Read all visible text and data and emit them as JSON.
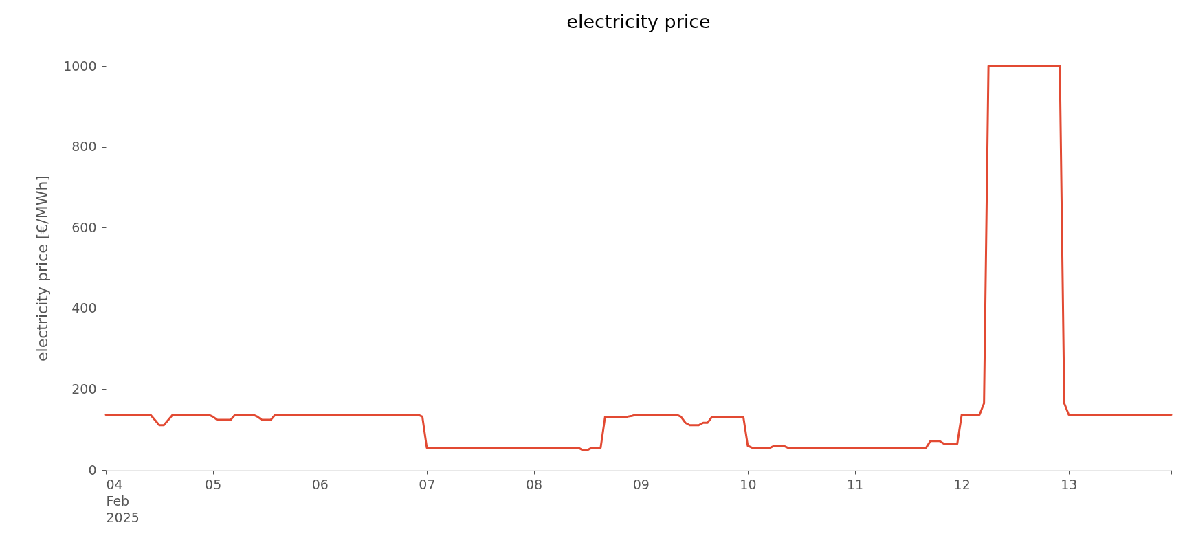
{
  "chart_data": {
    "type": "line",
    "title": "electricity price",
    "ylabel": "electricity price [€/MWh]",
    "x": [
      "2025-02-04T00:00",
      "2025-02-04T10:00",
      "2025-02-04T12:00",
      "2025-02-04T13:00",
      "2025-02-04T15:00",
      "2025-02-04T23:00",
      "2025-02-05T00:00",
      "2025-02-05T01:00",
      "2025-02-05T04:00",
      "2025-02-05T05:00",
      "2025-02-05T09:00",
      "2025-02-05T10:00",
      "2025-02-05T11:00",
      "2025-02-05T13:00",
      "2025-02-05T14:00",
      "2025-02-06T22:00",
      "2025-02-06T23:00",
      "2025-02-07T00:00",
      "2025-02-08T10:00",
      "2025-02-08T11:00",
      "2025-02-08T12:00",
      "2025-02-08T13:00",
      "2025-02-08T15:00",
      "2025-02-08T16:00",
      "2025-02-08T21:00",
      "2025-02-08T22:00",
      "2025-02-08T23:00",
      "2025-02-09T08:00",
      "2025-02-09T09:00",
      "2025-02-09T10:00",
      "2025-02-09T11:00",
      "2025-02-09T13:00",
      "2025-02-09T14:00",
      "2025-02-09T15:00",
      "2025-02-09T16:00",
      "2025-02-09T23:00",
      "2025-02-10T00:00",
      "2025-02-10T01:00",
      "2025-02-10T05:00",
      "2025-02-10T06:00",
      "2025-02-10T08:00",
      "2025-02-10T09:00",
      "2025-02-11T16:00",
      "2025-02-11T17:00",
      "2025-02-11T19:00",
      "2025-02-11T20:00",
      "2025-02-11T23:00",
      "2025-02-12T00:00",
      "2025-02-12T04:00",
      "2025-02-12T05:00",
      "2025-02-12T06:00",
      "2025-02-12T22:00",
      "2025-02-12T23:00",
      "2025-02-13T00:00",
      "2025-02-13T23:00"
    ],
    "series": [
      {
        "color": "#e24a33",
        "values": [
          137,
          137,
          111,
          111,
          137,
          137,
          132,
          124,
          124,
          137,
          137,
          132,
          124,
          124,
          137,
          137,
          132,
          55,
          55,
          49,
          49,
          55,
          55,
          132,
          132,
          134,
          137,
          137,
          132,
          117,
          111,
          111,
          117,
          117,
          132,
          132,
          60,
          55,
          55,
          60,
          60,
          55,
          55,
          72,
          72,
          65,
          65,
          137,
          137,
          165,
          1000,
          1000,
          165,
          137,
          137
        ]
      }
    ],
    "xticks": [
      {
        "value": "2025-02-04",
        "label": "04\nFeb\n2025"
      },
      {
        "value": "2025-02-05",
        "label": "05"
      },
      {
        "value": "2025-02-06",
        "label": "06"
      },
      {
        "value": "2025-02-07",
        "label": "07"
      },
      {
        "value": "2025-02-08",
        "label": "08"
      },
      {
        "value": "2025-02-09",
        "label": "09"
      },
      {
        "value": "2025-02-10",
        "label": "10"
      },
      {
        "value": "2025-02-11",
        "label": "11"
      },
      {
        "value": "2025-02-12",
        "label": "12"
      },
      {
        "value": "2025-02-13",
        "label": "13"
      },
      {
        "value": "2025-02-13T23:00",
        "label": null
      }
    ],
    "xlim": [
      "2025-02-04",
      "2025-02-13T23:00"
    ],
    "ylim": [
      0,
      1000
    ],
    "yticks": [
      0,
      200,
      400,
      600,
      800,
      1000
    ],
    "grid": false,
    "marker": "none",
    "line_style": "solid"
  }
}
